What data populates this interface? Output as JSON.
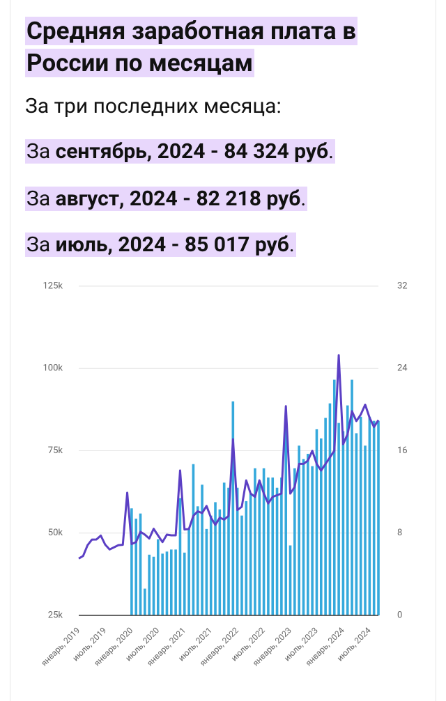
{
  "header": {
    "title": "Средняя заработная плата в России по месяцам",
    "subtitle": "За три последних месяца:",
    "lines": [
      {
        "prefix": "За",
        "bold": "сентябрь, 2024 - 84 324 руб",
        "suffix": "."
      },
      {
        "prefix": "За",
        "bold": "август, 2024 - 82 218 руб",
        "suffix": "."
      },
      {
        "prefix": "За",
        "bold": "июль, 2024 - 85 017 руб",
        "suffix": "."
      }
    ]
  },
  "chart_data": {
    "type": "bar+line",
    "categories": [
      "январь, 2019",
      null,
      null,
      null,
      null,
      null,
      "июль, 2019",
      null,
      null,
      null,
      null,
      null,
      "январь, 2020",
      null,
      null,
      null,
      null,
      null,
      "июль, 2020",
      null,
      null,
      null,
      null,
      null,
      "январь, 2021",
      null,
      null,
      null,
      null,
      null,
      "июль, 2021",
      null,
      null,
      null,
      null,
      null,
      "январь, 2022",
      null,
      null,
      null,
      null,
      null,
      "июль, 2022",
      null,
      null,
      null,
      null,
      null,
      "январь, 2023",
      null,
      null,
      null,
      null,
      null,
      "июль, 2023",
      null,
      null,
      null,
      null,
      null,
      "январь, 2024",
      null,
      null,
      null,
      null,
      null,
      "июль, 2024",
      null,
      null
    ],
    "series": [
      {
        "type": "bar",
        "axis": "y2",
        "color": "#35a9dc",
        "values": [
          null,
          null,
          null,
          null,
          null,
          null,
          null,
          null,
          null,
          null,
          null,
          null,
          10.4,
          9.4,
          9.9,
          2.6,
          5.9,
          5.7,
          7.4,
          6.0,
          6.2,
          6.4,
          6.4,
          11.4,
          6.1,
          8.4,
          14.7,
          10.6,
          12.7,
          8.4,
          9.7,
          11.0,
          10.3,
          12.9,
          12.4,
          20.8,
          12.4,
          9.7,
          11.1,
          11.8,
          14.3,
          13.1,
          14.3,
          13.4,
          13.4,
          12.4,
          13.4,
          18.5,
          6.8,
          14.3,
          16.5,
          15.2,
          15.7,
          14.5,
          18.1,
          17.2,
          19.2,
          20.6,
          22.9,
          18.7,
          17.9,
          20.4,
          22.9,
          17.7,
          19.3,
          16.5,
          19.3,
          18.9,
          18.9
        ]
      },
      {
        "type": "line",
        "axis": "y",
        "color": "#5b3fc4",
        "values": [
          42263,
          43062,
          46324,
          48030,
          48040,
          49235,
          46487,
          45024,
          45666,
          46324,
          46443,
          62239,
          46674,
          47257,
          50386,
          49516,
          48347,
          51305,
          49259,
          47257,
          49516,
          49305,
          49306,
          69000,
          51083,
          51229,
          55208,
          56614,
          56069,
          58229,
          54687,
          52498,
          54687,
          54098,
          55208,
          78500,
          57000,
          58000,
          66000,
          62000,
          61000,
          66000,
          62000,
          59000,
          61000,
          61500,
          62000,
          88500,
          62000,
          64000,
          71000,
          71000,
          72000,
          75000,
          71000,
          69000,
          71000,
          73000,
          75000,
          104000,
          77000,
          80000,
          87000,
          84000,
          86000,
          89000,
          85017,
          82218,
          84324
        ]
      }
    ],
    "ylim": [
      25000,
      125000
    ],
    "yticks": [
      {
        "value": 25000,
        "label": "25k"
      },
      {
        "value": 50000,
        "label": "50k"
      },
      {
        "value": 75000,
        "label": "75k"
      },
      {
        "value": 100000,
        "label": "100k"
      },
      {
        "value": 125000,
        "label": "125k"
      }
    ],
    "y2lim": [
      0,
      32
    ],
    "y2ticks": [
      0,
      8,
      16,
      24,
      32
    ],
    "grid": true
  }
}
